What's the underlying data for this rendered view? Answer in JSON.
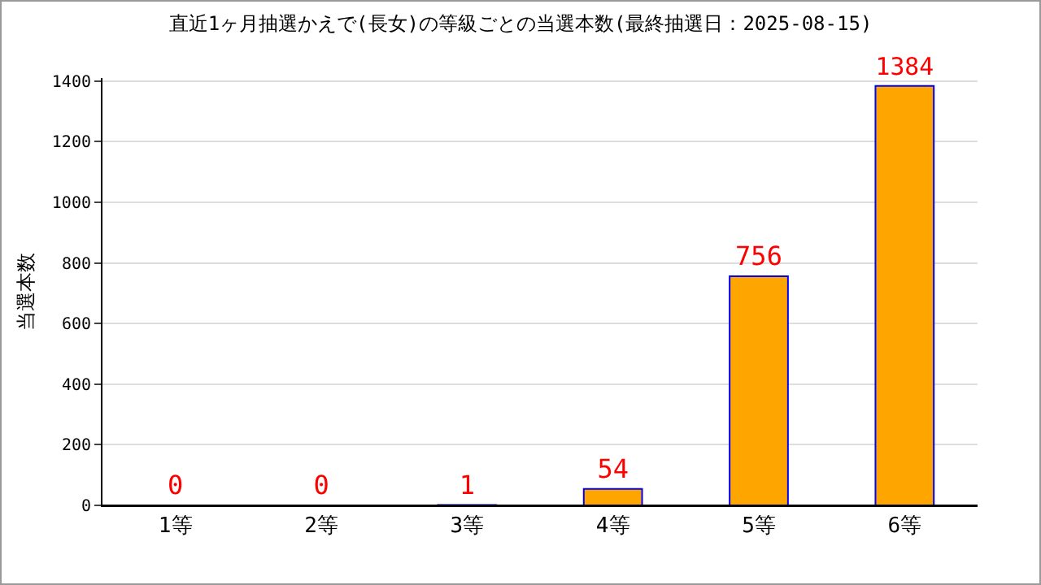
{
  "chart_data": {
    "type": "bar",
    "title": "直近1ヶ月抽選かえで(長女)の等級ごとの当選本数(最終抽選日：2025-08-15)",
    "ylabel": "当選本数",
    "categories": [
      "1等",
      "2等",
      "3等",
      "4等",
      "5等",
      "6等"
    ],
    "values": [
      0,
      0,
      1,
      54,
      756,
      1384
    ],
    "color": "#ffa500",
    "ylim": [
      0,
      1410
    ],
    "yticks": [
      0,
      200,
      400,
      600,
      800,
      1000,
      1200,
      1400
    ],
    "grid": "y",
    "data_labels": true,
    "legend": false
  }
}
